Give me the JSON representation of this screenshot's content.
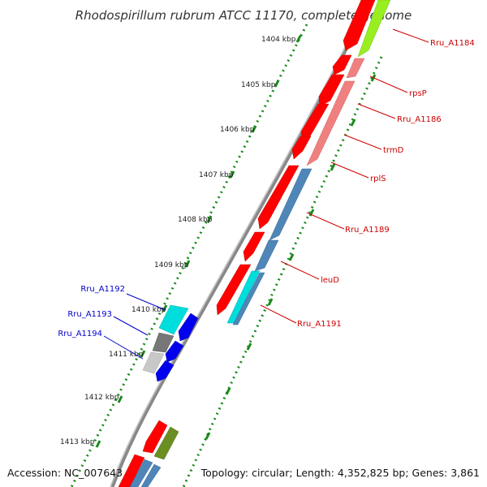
{
  "title": "Rhodospirillum rubrum ATCC 11170, complete genome",
  "footer": {
    "accession": "Accession: NC_007643",
    "summary": "Topology: circular; Length: 4,352,825 bp; Genes: 3,861"
  },
  "kbp_labels": [
    "1404 kbp",
    "1405 kbp",
    "1406 kbp",
    "1407 kbp",
    "1408 kbp",
    "1409 kbp",
    "1410 kbp",
    "1411 kbp",
    "1412 kbp",
    "1413 kbp"
  ],
  "gene_labels_right": [
    "Rru_A1184",
    "rpsP",
    "Rru_A1186",
    "trmD",
    "rplS",
    "Rru_A1189",
    "leuD",
    "Rru_A1191"
  ],
  "gene_labels_left": [
    "Rru_A1192",
    "Rru_A1193",
    "Rru_A1194"
  ],
  "colors": {
    "right_label": "#cc0000",
    "left_label": "#0000cc",
    "backbone": "#888888",
    "tick_green": "#1a8a1a",
    "cds_red": "#ff0000",
    "rrna_salmon": "#f08080",
    "steel_blue": "#4f86b8",
    "lime": "#99ee22",
    "cyan": "#00dddd",
    "blue": "#0000ee",
    "olive": "#6b8e23",
    "gray_dark": "#777777",
    "gray_light": "#c8c8c8"
  }
}
